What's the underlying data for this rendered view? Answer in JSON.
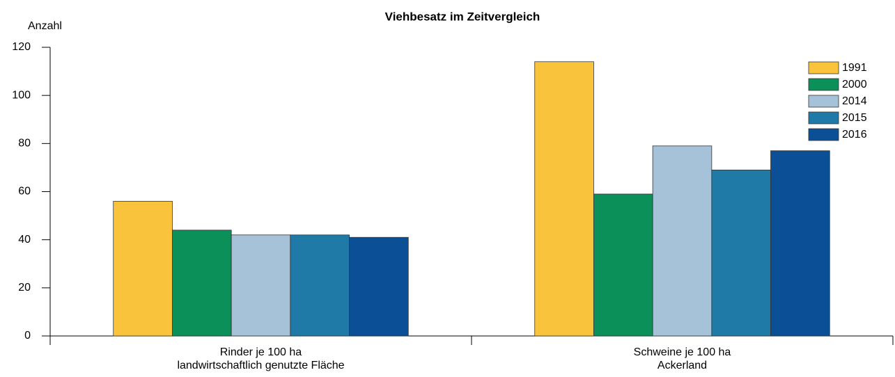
{
  "chart_data": {
    "type": "bar",
    "title": "Viehbesatz im Zeitvergleich",
    "y_label": "Anzahl",
    "categories": [
      "Rinder je 100 ha\nlandwirtschaftlich genutzte Fläche",
      "Schweine je 100 ha\nAckerland"
    ],
    "series": [
      {
        "name": "1991",
        "color": "#f9c33b",
        "values": [
          56,
          114
        ]
      },
      {
        "name": "2000",
        "color": "#0a9058",
        "values": [
          44,
          59
        ]
      },
      {
        "name": "2014",
        "color": "#a5c2d8",
        "values": [
          42,
          79
        ]
      },
      {
        "name": "2015",
        "color": "#1f7aa8",
        "values": [
          42,
          69
        ]
      },
      {
        "name": "2016",
        "color": "#0b5096",
        "values": [
          41,
          77
        ]
      }
    ],
    "ylim": [
      0,
      120
    ],
    "yticks": [
      0,
      20,
      40,
      60,
      80,
      100,
      120
    ],
    "grid": false,
    "legend": "top-right"
  }
}
